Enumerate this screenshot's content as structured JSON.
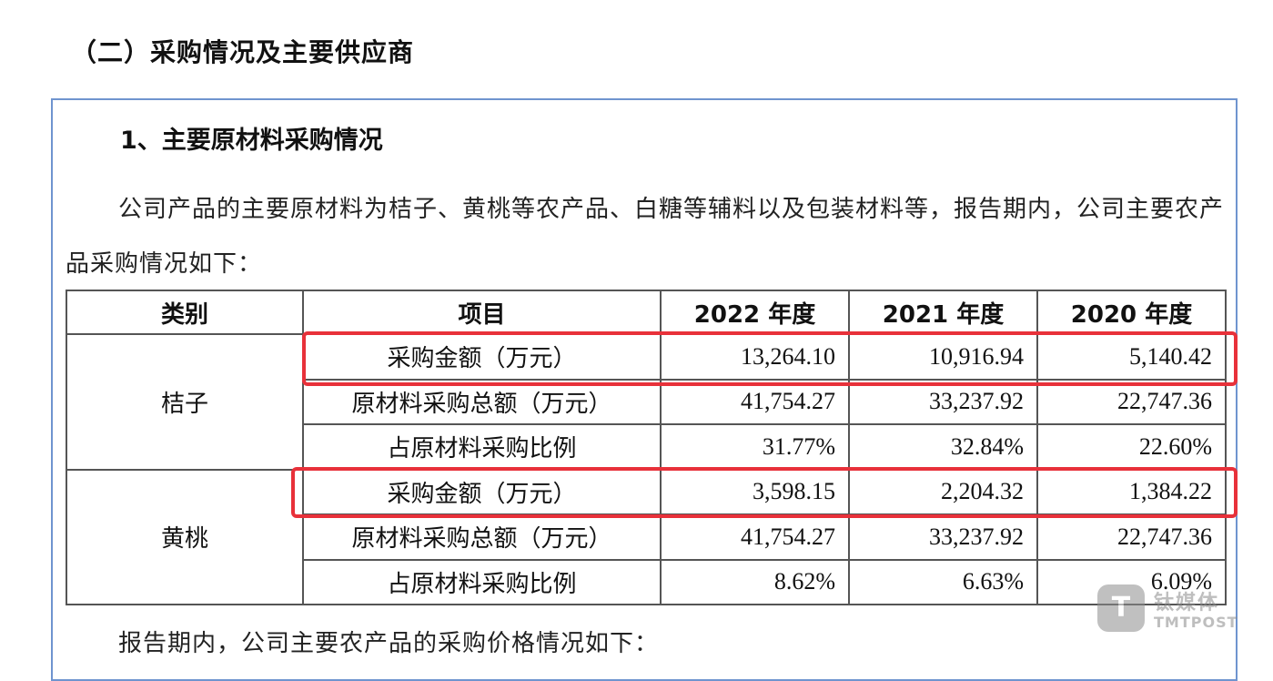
{
  "section_title": "（二）采购情况及主要供应商",
  "subsection_title": "1、主要原材料采购情况",
  "paragraph": "公司产品的主要原材料为桔子、黄桃等农产品、白糖等辅料以及包装材料等，报告期内，公司主要农产品采购情况如下：",
  "footer_paragraph": "报告期内，公司主要农产品的采购价格情况如下：",
  "table": {
    "headers": [
      "类别",
      "项目",
      "2022 年度",
      "2021 年度",
      "2020 年度"
    ],
    "groups": [
      {
        "category": "桔子",
        "rows": [
          {
            "item": "采购金额（万元）",
            "values": [
              "13,264.10",
              "10,916.94",
              "5,140.42"
            ],
            "highlighted": true
          },
          {
            "item": "原材料采购总额（万元）",
            "values": [
              "41,754.27",
              "33,237.92",
              "22,747.36"
            ]
          },
          {
            "item": "占原材料采购比例",
            "values": [
              "31.77%",
              "32.84%",
              "22.60%"
            ]
          }
        ]
      },
      {
        "category": "黄桃",
        "rows": [
          {
            "item": "采购金额（万元）",
            "values": [
              "3,598.15",
              "2,204.32",
              "1,384.22"
            ],
            "highlighted": true
          },
          {
            "item": "原材料采购总额（万元）",
            "values": [
              "41,754.27",
              "33,237.92",
              "22,747.36"
            ]
          },
          {
            "item": "占原材料采购比例",
            "values": [
              "8.62%",
              "6.63%",
              "6.09%"
            ]
          }
        ]
      }
    ]
  },
  "colors": {
    "frame_border": "#6f94cf",
    "highlight": "#e8313a"
  },
  "watermark": {
    "logo_glyph": "T",
    "cn": "钛媒体",
    "en": "TMTPOST"
  }
}
